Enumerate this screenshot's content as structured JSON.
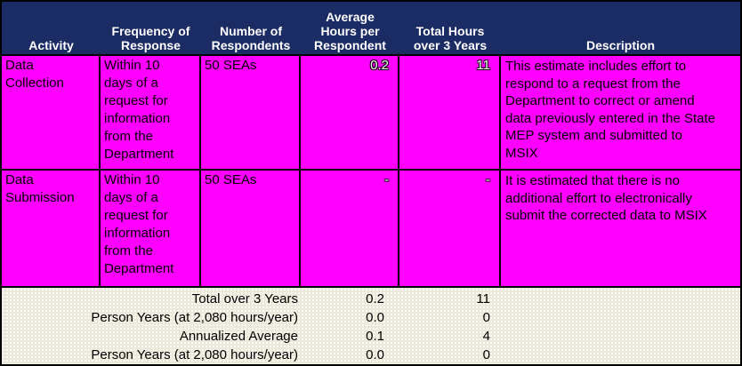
{
  "header": {
    "columns": [
      "Activity",
      "Frequency of Response",
      "Number of Respondents",
      "Average Hours per Respondent",
      "Total Hours over 3 Years",
      "Description"
    ]
  },
  "rows": [
    {
      "activity": "Data Collection",
      "frequency": "Within 10 days of a request for information from the Department",
      "respondents": "50 SEAs",
      "avg_hours": "0.2",
      "total_hours": "11",
      "description": "This estimate includes effort to respond to a request from the Department to correct or amend data previously entered in the State MEP system and submitted to MSIX"
    },
    {
      "activity": "Data Submission",
      "frequency": "Within 10 days of a request for information from the Department",
      "respondents": "50 SEAs",
      "avg_hours": "-",
      "total_hours": "-",
      "description": "It is estimated that there is no additional effort to electronically submit the corrected data to MSIX"
    }
  ],
  "summary": [
    {
      "label": "Total over 3 Years",
      "avg_hours": "0.2",
      "total_hours": "11"
    },
    {
      "label": "Person Years (at 2,080 hours/year)",
      "avg_hours": "0.0",
      "total_hours": "0"
    },
    {
      "label": "Annualized Average",
      "avg_hours": "0.1",
      "total_hours": "4"
    },
    {
      "label": "Person Years (at 2,080 hours/year)",
      "avg_hours": "0.0",
      "total_hours": "0"
    }
  ],
  "colors": {
    "header_bg": "#1B2B63",
    "header_text": "#FFFFFF",
    "row_bg": "#FF00FF",
    "body_text": "#000000",
    "row_number_text": "#FFFFFF",
    "summary_bg": "#ECE8DA",
    "border": "#000000"
  }
}
